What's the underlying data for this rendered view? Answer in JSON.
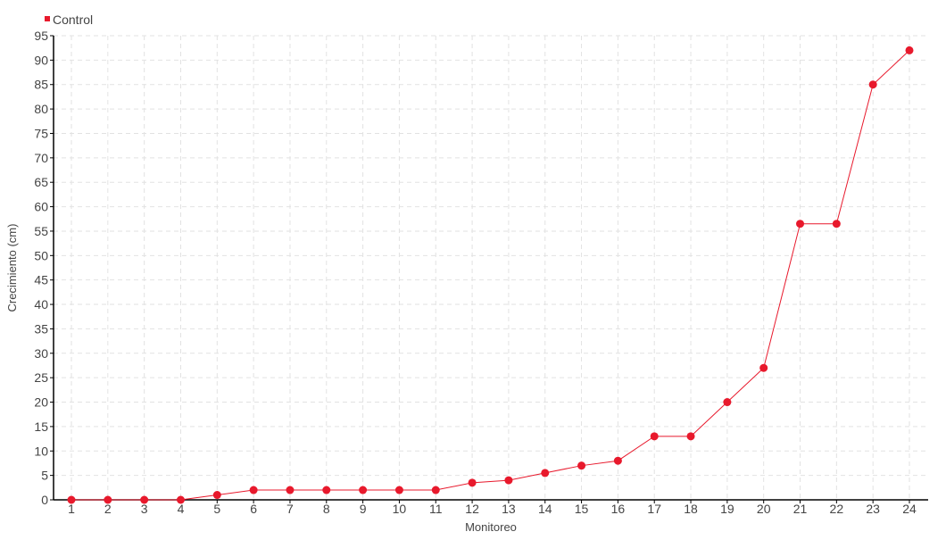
{
  "chart_data": {
    "type": "line",
    "title": "",
    "xlabel": "Monitoreo",
    "ylabel": "Crecimiento (cm)",
    "x": [
      1,
      2,
      3,
      4,
      5,
      6,
      7,
      8,
      9,
      10,
      11,
      12,
      13,
      14,
      15,
      16,
      17,
      18,
      19,
      20,
      21,
      22,
      23,
      24
    ],
    "series": [
      {
        "name": "Control",
        "color": "#e8192c",
        "values": [
          0,
          0,
          0,
          0,
          1,
          2,
          2,
          2,
          2,
          2,
          2,
          3.5,
          4,
          5.5,
          7,
          8,
          13,
          13,
          20,
          27,
          56.5,
          56.5,
          85,
          92
        ]
      }
    ],
    "ylim": [
      0,
      95
    ],
    "ytick_step": 5,
    "grid": true,
    "legend": "top-left"
  }
}
